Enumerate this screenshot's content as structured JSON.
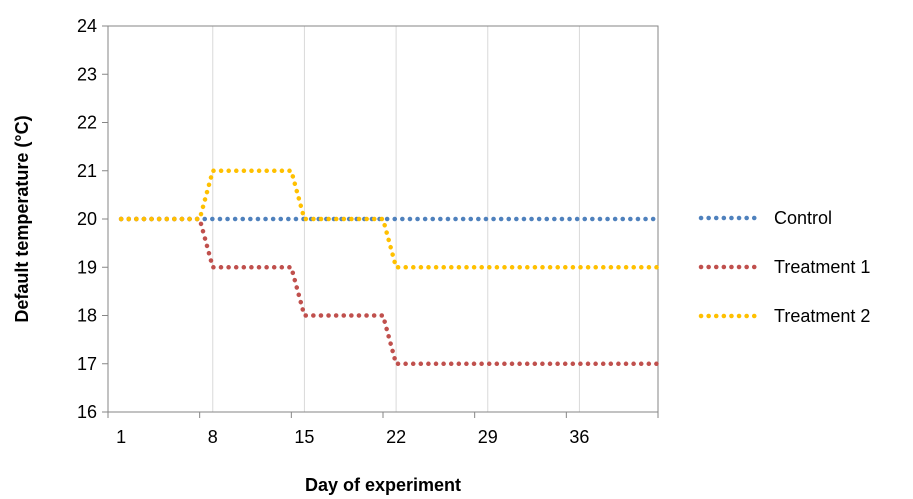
{
  "chart_data": {
    "type": "line",
    "title": "",
    "xlabel": "Day of experiment",
    "ylabel": "Default temperature (°C)",
    "xlim": [
      0,
      42
    ],
    "ylim": [
      16,
      24
    ],
    "x_ticks": [
      1,
      8,
      15,
      22,
      29,
      36
    ],
    "y_ticks": [
      16,
      17,
      18,
      19,
      20,
      21,
      22,
      23,
      24
    ],
    "grid": "vertical",
    "legend_position": "right",
    "series": [
      {
        "name": "Control",
        "color": "#4F81BD",
        "line_style": "dotted",
        "points": [
          [
            1,
            20
          ],
          [
            42,
            20
          ]
        ]
      },
      {
        "name": "Treatment 1",
        "color": "#C0504D",
        "line_style": "dotted",
        "points": [
          [
            1,
            20
          ],
          [
            7,
            20
          ],
          [
            8,
            19
          ],
          [
            14,
            19
          ],
          [
            15,
            18
          ],
          [
            21,
            18
          ],
          [
            22,
            17
          ],
          [
            42,
            17
          ]
        ]
      },
      {
        "name": "Treatment 2",
        "color": "#FFC000",
        "line_style": "dotted",
        "points": [
          [
            1,
            20
          ],
          [
            7,
            20
          ],
          [
            8,
            21
          ],
          [
            14,
            21
          ],
          [
            15,
            20
          ],
          [
            21,
            20
          ],
          [
            22,
            19
          ],
          [
            42,
            19
          ]
        ]
      }
    ]
  }
}
